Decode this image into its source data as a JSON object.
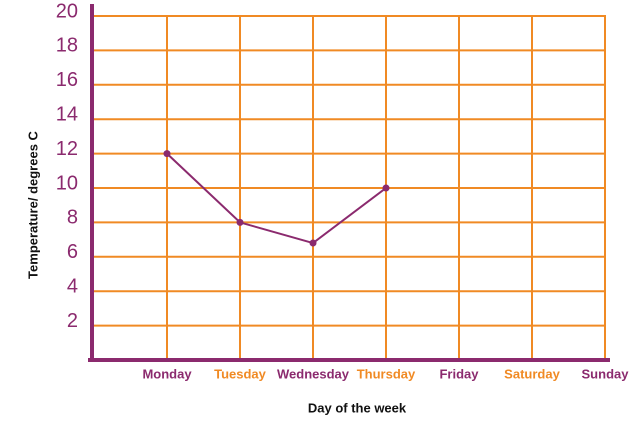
{
  "chart_data": {
    "type": "line",
    "x_label": "Day of the week",
    "y_label": "Temperature/ degrees C",
    "categories": [
      "Monday",
      "Tuesday",
      "Wednesday",
      "Thursday",
      "Friday",
      "Saturday",
      "Sunday"
    ],
    "label_colors": [
      "#8b2a6e",
      "#f08a24",
      "#8b2a6e",
      "#f08a24",
      "#8b2a6e",
      "#f08a24",
      "#8b2a6e"
    ],
    "values": [
      12,
      8,
      6.8,
      10,
      null,
      null,
      null
    ],
    "color": "#8b2a6e",
    "grid_color": "#f08a24",
    "axis_color": "#8b2a6e",
    "ylim": [
      0,
      20
    ],
    "yticks": [
      2,
      4,
      6,
      8,
      10,
      12,
      14,
      16,
      18,
      20
    ],
    "grid": true
  }
}
